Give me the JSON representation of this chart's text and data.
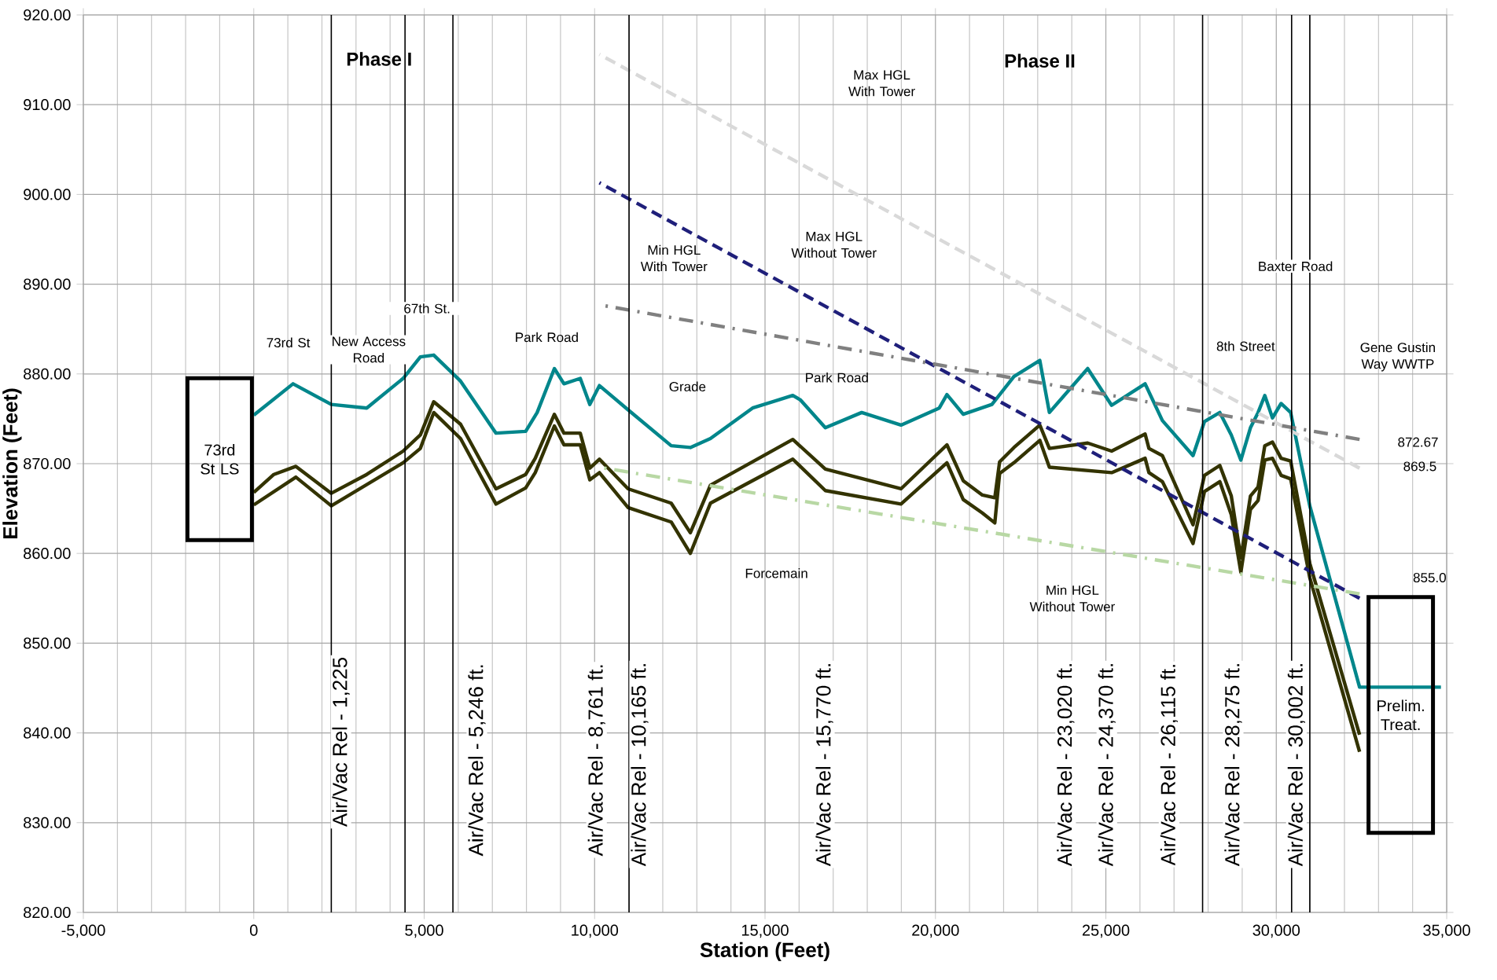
{
  "chart_data": {
    "type": "line",
    "xlabel": "Station (Feet)",
    "ylabel": "Elevation (Feet)",
    "xlim": [
      -5000,
      35000
    ],
    "ylim": [
      820,
      920
    ],
    "xticks": [
      {
        "value": -5000,
        "label": "-5,000"
      },
      0,
      {
        "value": 5000,
        "label": "5,000"
      },
      {
        "value": 10000,
        "label": "10,000"
      },
      {
        "value": 15000,
        "label": "15,000"
      },
      {
        "value": 20000,
        "label": "20,000"
      },
      {
        "value": 25000,
        "label": "25,000"
      },
      {
        "value": 30000,
        "label": "30,000"
      },
      {
        "value": 35000,
        "label": "35,000"
      }
    ],
    "yticks": [
      {
        "value": 820,
        "label": "820.00"
      },
      {
        "value": 830,
        "label": "830.00"
      },
      {
        "value": 840,
        "label": "840.00"
      },
      {
        "value": 850,
        "label": "850.00"
      },
      {
        "value": 860,
        "label": "860.00"
      },
      {
        "value": 870,
        "label": "870.00"
      },
      {
        "value": 880,
        "label": "880.00"
      },
      {
        "value": 890,
        "label": "890.00"
      },
      {
        "value": 900,
        "label": "900.00"
      },
      {
        "value": 910,
        "label": "910.00"
      },
      {
        "value": 920,
        "label": "920.00"
      }
    ],
    "grid": true,
    "marker": "none",
    "series": [
      {
        "color": "#00868b",
        "line_style": "solid",
        "x": [
          0,
          1152,
          2275,
          3315,
          4382,
          4888,
          5281,
          6067,
          7107,
          7978,
          8315,
          8820,
          9101,
          9579,
          9860,
          10141,
          10983,
          12247,
          12809,
          13399,
          14635,
          15815,
          16040,
          16770,
          17837,
          18989,
          20113,
          20337,
          20815,
          21657,
          22303,
          23062,
          23343,
          24467,
          25169,
          26152,
          26658,
          27557,
          27894,
          28343,
          28680,
          28961,
          29242,
          29466,
          29663,
          29888,
          30141,
          30422,
          30983,
          32444,
          34831
        ],
        "values": [
          875.4,
          878.9,
          876.6,
          876.2,
          879.5,
          881.9,
          882.1,
          879.2,
          873.4,
          873.6,
          875.7,
          880.6,
          878.9,
          879.5,
          876.6,
          878.7,
          876.0,
          872.0,
          871.8,
          872.8,
          876.2,
          877.6,
          877.1,
          874.0,
          875.7,
          874.3,
          876.2,
          877.7,
          875.5,
          876.6,
          879.7,
          881.5,
          875.7,
          880.6,
          876.5,
          878.9,
          874.8,
          870.9,
          874.7,
          875.7,
          873.2,
          870.4,
          874.0,
          875.7,
          877.6,
          875.1,
          876.7,
          875.7,
          865.3,
          845.1,
          845.1
        ]
      },
      {
        "color": "#333300",
        "line_style": "solid",
        "x": [
          0,
          590,
          1236,
          2275,
          3315,
          4382,
          4888,
          5281,
          6067,
          7107,
          7978,
          8259,
          8820,
          9101,
          9579,
          9860,
          10141,
          10983,
          12247,
          12809,
          13399,
          15815,
          16770,
          18989,
          20337,
          20815,
          21377,
          21742,
          21882,
          22303,
          23062,
          23343,
          24467,
          25169,
          26152,
          26264,
          26658,
          27557,
          27894,
          28343,
          28680,
          28961,
          29242,
          29466,
          29663,
          29888,
          30141,
          30422,
          30983,
          32444
        ],
        "values": [
          866.8,
          868.8,
          869.7,
          866.7,
          868.8,
          871.4,
          873.2,
          876.9,
          874.4,
          867.2,
          868.8,
          870.6,
          875.5,
          873.4,
          873.4,
          869.5,
          870.5,
          867.2,
          865.6,
          862.3,
          867.6,
          872.7,
          869.4,
          867.2,
          872.1,
          868.1,
          866.5,
          866.2,
          870.2,
          871.8,
          874.3,
          871.7,
          872.3,
          871.4,
          873.3,
          871.7,
          870.9,
          863.2,
          868.7,
          869.8,
          866.4,
          859.5,
          866.4,
          867.4,
          872.0,
          872.4,
          870.6,
          870.3,
          858.9,
          839.8
        ]
      },
      {
        "color": "#333300",
        "line_style": "solid",
        "x": [
          0,
          1236,
          2275,
          4382,
          4888,
          5281,
          6067,
          7107,
          7978,
          8259,
          8820,
          9101,
          9579,
          9860,
          10141,
          10983,
          12247,
          12809,
          13399,
          15815,
          16770,
          18989,
          20337,
          20815,
          21377,
          21742,
          21882,
          22303,
          23062,
          23343,
          25169,
          26152,
          26264,
          26658,
          27557,
          27894,
          28343,
          28680,
          28961,
          29242,
          29466,
          29663,
          29888,
          30141,
          30422,
          30983,
          32444
        ],
        "values": [
          865.4,
          868.5,
          865.3,
          870.1,
          871.7,
          875.7,
          872.8,
          865.5,
          867.3,
          869.0,
          874.2,
          872.1,
          872.1,
          868.2,
          869.0,
          865.1,
          863.5,
          860.0,
          865.6,
          870.5,
          867.0,
          865.5,
          870.1,
          866.0,
          864.5,
          863.4,
          868.9,
          870.1,
          872.6,
          869.6,
          869.0,
          870.6,
          869.0,
          868.0,
          861.1,
          866.9,
          868.0,
          864.3,
          857.9,
          864.9,
          865.9,
          870.4,
          870.6,
          868.7,
          868.3,
          857.3,
          837.9
        ]
      },
      {
        "color": "#d9d9d9",
        "line_style": "dashed",
        "x": [
          10141,
          32444
        ],
        "values": [
          915.6,
          869.5
        ]
      },
      {
        "color": "#1f1f7a",
        "line_style": "dashed",
        "x": [
          10141,
          32444
        ],
        "values": [
          901.3,
          855.0
        ]
      },
      {
        "color": "#808080",
        "line_style": "dashdot",
        "x": [
          10141,
          32444
        ],
        "values": [
          887.7,
          872.7
        ]
      },
      {
        "color": "#b8d8a4",
        "line_style": "dashdot",
        "x": [
          10141,
          32444
        ],
        "values": [
          869.6,
          855.5
        ]
      }
    ],
    "ref_lines": [
      {
        "axis": "x",
        "value": 2275,
        "color": "#000000"
      },
      {
        "axis": "x",
        "value": 4438,
        "color": "#000000"
      },
      {
        "axis": "x",
        "value": 5843,
        "color": "#000000"
      },
      {
        "axis": "x",
        "value": 11011,
        "color": "#000000"
      },
      {
        "axis": "x",
        "value": 27838,
        "color": "#000000"
      },
      {
        "axis": "x",
        "value": 30450,
        "color": "#000000"
      },
      {
        "axis": "x",
        "value": 30983,
        "color": "#000000"
      }
    ],
    "annotations": [
      "Phase I",
      "Phase II",
      "73rd St LS",
      "Prelim. Treat.",
      "Max HGL With Tower",
      "Max HGL Without Tower",
      "Min HGL With Tower",
      "Grade",
      "Park Road",
      "Park Road",
      "73rd St",
      "New Access Road",
      "67th St.",
      "Forcemain",
      "Min HGL Without Tower",
      "8th Street",
      "Baxter Road",
      "Gene Gustin Way WWTP",
      "872.67",
      "869.5",
      "855.0",
      "Air/Vac Rel  -  1,225",
      "Air/Vac Rel  -  5,246 ft.",
      "Air/Vac Rel  -  8,761 ft.",
      "Air/Vac Rel  -  10,165 ft.",
      "Air/Vac Rel  -  15,770 ft.",
      "Air/Vac Rel  -  23,020 ft.",
      "Air/Vac Rel  -  24,370 ft.",
      "Air/Vac Rel  -  26,115 ft.",
      "Air/Vac Rel  -  28,275 ft.",
      "Air/Vac Rel  -  30,002 ft."
    ]
  }
}
